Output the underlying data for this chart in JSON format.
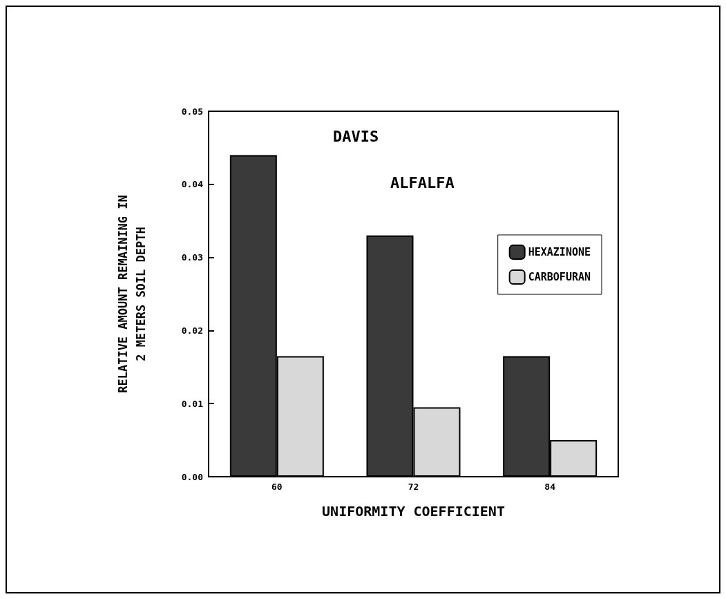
{
  "chart_data": {
    "type": "bar",
    "xlabel": "UNIFORMITY COEFFICIENT",
    "ylabel": "RELATIVE AMOUNT REMAINING IN\n2 METERS SOIL DEPTH",
    "annotations": [
      "DAVIS",
      "ALFALFA"
    ],
    "categories": [
      "60",
      "72",
      "84"
    ],
    "series": [
      {
        "name": "HEXAZINONE",
        "color": "#3a3a3a",
        "values": [
          0.044,
          0.033,
          0.0165
        ]
      },
      {
        "name": "CARBOFURAN",
        "color": "#d8d8d8",
        "values": [
          0.0165,
          0.0095,
          0.005
        ]
      }
    ],
    "ylim": [
      0,
      0.05
    ],
    "yticks": [
      {
        "value": 0,
        "label": "0.00"
      },
      0.01,
      0.02,
      0.03,
      0.04,
      0.05
    ],
    "grid": false,
    "legend": "top right"
  }
}
